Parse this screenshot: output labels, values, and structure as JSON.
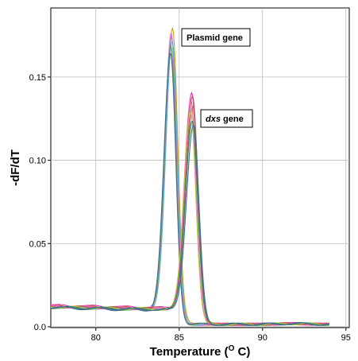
{
  "chart_data": {
    "type": "line",
    "title": "",
    "xlabel": "Temperature (",
    "xlabel_super": "O",
    "xlabel_unit": " C)",
    "ylabel": "-dF/dT",
    "xlim": [
      77.3,
      95.2
    ],
    "ylim": [
      -0.0005,
      0.1915
    ],
    "x_ticks": [
      80,
      85,
      90,
      95
    ],
    "x_tick_labels": [
      "80",
      "85",
      "90",
      "95"
    ],
    "y_ticks": [
      0.0,
      0.05,
      0.1,
      0.15
    ],
    "y_tick_labels": [
      "0.0",
      "0.05",
      "0.10",
      "0.15"
    ],
    "grid": true,
    "annotations": [
      {
        "name": "plasmid-label",
        "text": "Plasmid gene",
        "italic_part": "",
        "x": 86.9,
        "y": 0.174
      },
      {
        "name": "dxs-label",
        "text": " gene",
        "italic_part": "dxs",
        "x": 86.3,
        "y": 0.125
      }
    ],
    "series": [
      {
        "color": "#d4a017",
        "peak_x": 84.6,
        "peak_y": 0.18,
        "w": 0.58,
        "start_y": 0.0125
      },
      {
        "color": "#e07ad6",
        "peak_x": 84.52,
        "peak_y": 0.177,
        "w": 0.56,
        "start_y": 0.0122
      },
      {
        "color": "#9a84d8",
        "peak_x": 84.55,
        "peak_y": 0.174,
        "w": 0.58,
        "start_y": 0.012
      },
      {
        "color": "#5ab4c8",
        "peak_x": 84.58,
        "peak_y": 0.171,
        "w": 0.57,
        "start_y": 0.0118
      },
      {
        "color": "#6a9a4a",
        "peak_x": 84.5,
        "peak_y": 0.168,
        "w": 0.57,
        "start_y": 0.0116
      },
      {
        "color": "#4a6a8a",
        "peak_x": 84.48,
        "peak_y": 0.164,
        "w": 0.58,
        "start_y": 0.0114
      },
      {
        "color": "#e0359a",
        "peak_x": 85.75,
        "peak_y": 0.14,
        "w": 0.6,
        "start_y": 0.0128
      },
      {
        "color": "#d14a6a",
        "peak_x": 85.8,
        "peak_y": 0.138,
        "w": 0.6,
        "start_y": 0.0126
      },
      {
        "color": "#f05ab8",
        "peak_x": 85.7,
        "peak_y": 0.136,
        "w": 0.59,
        "start_y": 0.0124
      },
      {
        "color": "#a8664a",
        "peak_x": 85.82,
        "peak_y": 0.133,
        "w": 0.6,
        "start_y": 0.0122
      },
      {
        "color": "#b9c43a",
        "peak_x": 85.68,
        "peak_y": 0.13,
        "w": 0.58,
        "start_y": 0.012
      },
      {
        "color": "#2e8a6a",
        "peak_x": 85.78,
        "peak_y": 0.124,
        "w": 0.6,
        "start_y": 0.0118
      },
      {
        "color": "#3c6e9a",
        "peak_x": 85.85,
        "peak_y": 0.121,
        "w": 0.61,
        "start_y": 0.0116
      }
    ]
  }
}
